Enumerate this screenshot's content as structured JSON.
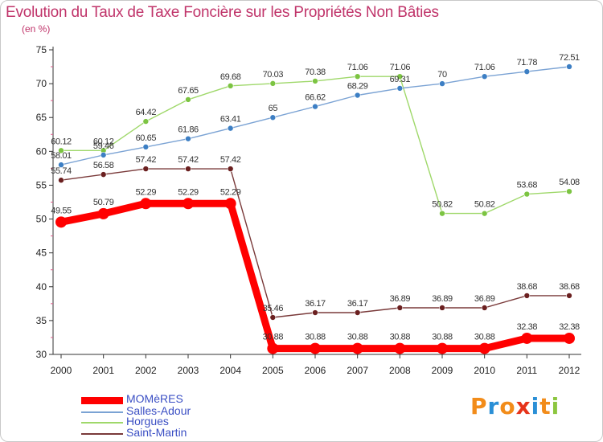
{
  "header": {
    "title": "Evolution du Taux de Taxe Foncière sur les Propriétés Non Bâties",
    "unit": "(en %)"
  },
  "colors": {
    "title": "#c0346a",
    "legend_text": "#3b4fc4",
    "axis": "#333333",
    "tick_mark": "#e05a8a"
  },
  "brand": {
    "letters": [
      "P",
      "r",
      "o",
      "x",
      "i",
      "t",
      "i"
    ],
    "colors": [
      "#f28c1a",
      "#2a8fd6",
      "#f28c1a",
      "#e6331a",
      "#2a8fd6",
      "#f28c1a",
      "#8cc63f"
    ]
  },
  "chart_data": {
    "type": "line",
    "title": "Evolution du Taux de Taxe Foncière sur les Propriétés Non Bâties",
    "ylabel": "(en %)",
    "xlabel": "",
    "x": [
      "2000",
      "2001",
      "2002",
      "2003",
      "2004",
      "2005",
      "2006",
      "2007",
      "2008",
      "2009",
      "2010",
      "2011",
      "2012"
    ],
    "ylim": [
      30,
      75
    ],
    "yticks": [
      30,
      35,
      40,
      45,
      50,
      55,
      60,
      65,
      70,
      75
    ],
    "grid": false,
    "legend_position": "bottom-left",
    "series": [
      {
        "name": "MOMèRES",
        "color": "#ff0000",
        "marker_color": "#ff0000",
        "style": "thick",
        "values": [
          49.55,
          50.79,
          52.29,
          52.29,
          52.29,
          30.88,
          30.88,
          30.88,
          30.88,
          30.88,
          30.88,
          32.38,
          32.38
        ],
        "labels": [
          "49.55",
          "50.79",
          "52.29",
          "52.29",
          "52.29",
          "30.88",
          "30.88",
          "30.88",
          "30.88",
          "30.88",
          "30.88",
          "32.38",
          "32.38"
        ]
      },
      {
        "name": "Salles-Adour",
        "color": "#7ba3d4",
        "marker_color": "#3d7fc4",
        "style": "thin",
        "values": [
          58.01,
          59.46,
          60.65,
          61.86,
          63.41,
          65,
          66.62,
          68.29,
          69.31,
          70,
          71.06,
          71.78,
          72.51
        ],
        "labels": [
          "58.01",
          "59.46",
          "60.65",
          "61.86",
          "63.41",
          "65",
          "66.62",
          "68.29",
          "69.31",
          "70",
          "71.06",
          "71.78",
          "72.51"
        ]
      },
      {
        "name": "Horgues",
        "color": "#9fd86a",
        "marker_color": "#7cc442",
        "style": "thin",
        "values": [
          60.12,
          60.12,
          64.42,
          67.65,
          69.68,
          70.03,
          70.38,
          71.06,
          71.06,
          50.82,
          50.82,
          53.68,
          54.08
        ],
        "labels": [
          "60.12",
          "60.12",
          "64.42",
          "67.65",
          "69.68",
          "70.03",
          "70.38",
          "71.06",
          "71.06",
          "50.82",
          "50.82",
          "53.68",
          "54.08"
        ]
      },
      {
        "name": "Saint-Martin",
        "color": "#7a3a3a",
        "marker_color": "#6b2020",
        "style": "thin",
        "values": [
          55.74,
          56.58,
          57.42,
          57.42,
          57.42,
          35.46,
          36.17,
          36.17,
          36.89,
          36.89,
          36.89,
          38.68,
          38.68
        ],
        "labels": [
          "55.74",
          "56.58",
          "57.42",
          "57.42",
          "57.42",
          "35.46",
          "36.17",
          "36.17",
          "36.89",
          "36.89",
          "36.89",
          "38.68",
          "38.68"
        ]
      }
    ]
  }
}
